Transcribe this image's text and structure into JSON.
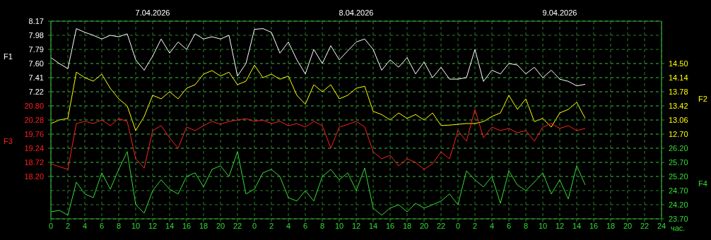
{
  "chart_data": [
    {
      "type": "line",
      "x": [
        "2026-04-07T00:00",
        "2026-04-07T01:00",
        "2026-04-07T02:00",
        "2026-04-07T03:00",
        "2026-04-07T04:00",
        "2026-04-07T05:00",
        "2026-04-07T06:00",
        "2026-04-07T07:00",
        "2026-04-07T08:00",
        "2026-04-07T09:00",
        "2026-04-07T10:00",
        "2026-04-07T11:00",
        "2026-04-07T12:00",
        "2026-04-07T13:00",
        "2026-04-07T14:00",
        "2026-04-07T15:00",
        "2026-04-07T16:00",
        "2026-04-07T17:00",
        "2026-04-07T18:00",
        "2026-04-07T19:00",
        "2026-04-07T20:00",
        "2026-04-07T21:00",
        "2026-04-07T22:00",
        "2026-04-07T23:00",
        "2026-04-08T00:00",
        "2026-04-08T01:00",
        "2026-04-08T02:00",
        "2026-04-08T03:00",
        "2026-04-08T04:00",
        "2026-04-08T05:00",
        "2026-04-08T06:00",
        "2026-04-08T07:00",
        "2026-04-08T08:00",
        "2026-04-08T09:00",
        "2026-04-08T10:00",
        "2026-04-08T11:00",
        "2026-04-08T12:00",
        "2026-04-08T13:00",
        "2026-04-08T14:00",
        "2026-04-08T15:00",
        "2026-04-08T16:00",
        "2026-04-08T17:00",
        "2026-04-08T18:00",
        "2026-04-08T19:00",
        "2026-04-08T20:00",
        "2026-04-08T21:00",
        "2026-04-08T22:00",
        "2026-04-08T23:00",
        "2026-04-09T00:00",
        "2026-04-09T01:00",
        "2026-04-09T02:00",
        "2026-04-09T03:00",
        "2026-04-09T04:00",
        "2026-04-09T05:00",
        "2026-04-09T06:00",
        "2026-04-09T07:00",
        "2026-04-09T08:00",
        "2026-04-09T09:00",
        "2026-04-09T10:00",
        "2026-04-09T11:00",
        "2026-04-09T12:00",
        "2026-04-09T13:00",
        "2026-04-09T14:00",
        "2026-04-09T15:00"
      ],
      "xlim": [
        "2026-04-07T00:00",
        "2026-04-10T00:00"
      ],
      "xticks": [
        {
          "value": "2026-04-07T00:00",
          "label": "0"
        },
        {
          "value": "2026-04-07T02:00",
          "label": "2"
        },
        {
          "value": "2026-04-07T04:00",
          "label": "4"
        },
        {
          "value": "2026-04-07T06:00",
          "label": "6"
        },
        {
          "value": "2026-04-07T08:00",
          "label": "8"
        },
        {
          "value": "2026-04-07T10:00",
          "label": "10"
        },
        {
          "value": "2026-04-07T12:00",
          "label": "12"
        },
        {
          "value": "2026-04-07T14:00",
          "label": "14"
        },
        {
          "value": "2026-04-07T16:00",
          "label": "16"
        },
        {
          "value": "2026-04-07T18:00",
          "label": "18"
        },
        {
          "value": "2026-04-07T20:00",
          "label": "20"
        },
        {
          "value": "2026-04-07T22:00",
          "label": "22"
        },
        {
          "value": "2026-04-08T00:00",
          "label": "0"
        },
        {
          "value": "2026-04-08T02:00",
          "label": "2"
        },
        {
          "value": "2026-04-08T04:00",
          "label": "4"
        },
        {
          "value": "2026-04-08T06:00",
          "label": "6"
        },
        {
          "value": "2026-04-08T08:00",
          "label": "8"
        },
        {
          "value": "2026-04-08T10:00",
          "label": "10"
        },
        {
          "value": "2026-04-08T12:00",
          "label": "12"
        },
        {
          "value": "2026-04-08T14:00",
          "label": "14"
        },
        {
          "value": "2026-04-08T16:00",
          "label": "16"
        },
        {
          "value": "2026-04-08T18:00",
          "label": "18"
        },
        {
          "value": "2026-04-08T20:00",
          "label": "20"
        },
        {
          "value": "2026-04-08T22:00",
          "label": "22"
        },
        {
          "value": "2026-04-09T00:00",
          "label": "0"
        },
        {
          "value": "2026-04-09T02:00",
          "label": "2"
        },
        {
          "value": "2026-04-09T04:00",
          "label": "4"
        },
        {
          "value": "2026-04-09T06:00",
          "label": "6"
        },
        {
          "value": "2026-04-09T08:00",
          "label": "8"
        },
        {
          "value": "2026-04-09T10:00",
          "label": "10"
        },
        {
          "value": "2026-04-09T12:00",
          "label": "12"
        },
        {
          "value": "2026-04-09T14:00",
          "label": "14"
        },
        {
          "value": "2026-04-09T16:00",
          "label": "16"
        },
        {
          "value": "2026-04-09T18:00",
          "label": "18"
        },
        {
          "value": "2026-04-09T20:00",
          "label": "20"
        },
        {
          "value": "2026-04-09T22:00",
          "label": "22"
        },
        {
          "value": "2026-04-10T00:00",
          "label": "24"
        }
      ],
      "xlabel": "час.",
      "x2lim": [
        "2026-04-07T00:00",
        "2026-04-10T00:00"
      ],
      "x2ticks": [
        {
          "value": "2026-04-07T12:00",
          "label": "7.04.2026"
        },
        {
          "value": "2026-04-08T12:00",
          "label": "8.04.2026"
        },
        {
          "value": "2026-04-09T12:00",
          "label": "9.04.2026"
        }
      ],
      "ylabel": "F1",
      "ylim": [
        5.51,
        8.17
      ],
      "yticks": [
        8.17,
        7.98,
        7.79,
        {
          "value": 7.6,
          "label": "7.60"
        },
        7.41,
        7.22
      ],
      "y2label": "F2",
      "y2lim": [
        10.54,
        15.58
      ],
      "y2ticks": [
        {
          "value": 14.5,
          "label": "14.50"
        },
        14.14,
        13.78,
        13.42,
        13.06,
        {
          "value": 12.7,
          "label": "12.70"
        }
      ],
      "grid": true,
      "series": [
        {
          "color": "#ffffff",
          "values": [
            7.68,
            7.6,
            7.53,
            8.07,
            8.02,
            7.98,
            7.93,
            7.98,
            7.96,
            8.0,
            7.65,
            7.51,
            7.7,
            7.93,
            7.74,
            7.89,
            7.79,
            8.0,
            7.93,
            7.96,
            7.93,
            7.98,
            7.43,
            7.6,
            8.06,
            8.07,
            8.02,
            7.74,
            7.89,
            7.65,
            7.46,
            7.79,
            7.6,
            7.84,
            7.65,
            7.77,
            7.89,
            7.93,
            7.79,
            7.51,
            7.65,
            7.55,
            7.68,
            7.46,
            7.62,
            7.41,
            7.55,
            7.39,
            7.39,
            7.41,
            7.79,
            7.36,
            7.51,
            7.46,
            7.6,
            7.58,
            7.46,
            7.55,
            7.41,
            7.51,
            7.39,
            7.36,
            7.3,
            7.32
          ]
        },
        {
          "color": "#ffff00",
          "axis": "y2",
          "values": [
            12.97,
            13.06,
            13.1,
            14.28,
            14.14,
            14.05,
            14.23,
            13.87,
            13.6,
            13.42,
            12.79,
            13.15,
            13.69,
            13.6,
            13.78,
            13.6,
            13.87,
            13.96,
            14.23,
            14.32,
            14.18,
            14.28,
            13.96,
            14.05,
            14.46,
            14.14,
            14.23,
            14.1,
            14.18,
            13.69,
            13.46,
            13.96,
            13.78,
            13.96,
            13.6,
            13.69,
            13.87,
            13.92,
            13.28,
            13.2,
            13.06,
            13.24,
            13.1,
            13.2,
            13.06,
            13.24,
            12.92,
            12.93,
            12.95,
            12.97,
            12.97,
            13.02,
            13.15,
            13.24,
            13.69,
            13.33,
            13.6,
            13.02,
            13.1,
            12.88,
            13.24,
            13.33,
            13.51,
            13.1
          ]
        }
      ]
    },
    {
      "type": "line",
      "x": [
        "2026-04-07T00:00",
        "2026-04-07T01:00",
        "2026-04-07T02:00",
        "2026-04-07T03:00",
        "2026-04-07T04:00",
        "2026-04-07T05:00",
        "2026-04-07T06:00",
        "2026-04-07T07:00",
        "2026-04-07T08:00",
        "2026-04-07T09:00",
        "2026-04-07T10:00",
        "2026-04-07T11:00",
        "2026-04-07T12:00",
        "2026-04-07T13:00",
        "2026-04-07T14:00",
        "2026-04-07T15:00",
        "2026-04-07T16:00",
        "2026-04-07T17:00",
        "2026-04-07T18:00",
        "2026-04-07T19:00",
        "2026-04-07T20:00",
        "2026-04-07T21:00",
        "2026-04-07T22:00",
        "2026-04-07T23:00",
        "2026-04-08T00:00",
        "2026-04-08T01:00",
        "2026-04-08T02:00",
        "2026-04-08T03:00",
        "2026-04-08T04:00",
        "2026-04-08T05:00",
        "2026-04-08T06:00",
        "2026-04-08T07:00",
        "2026-04-08T08:00",
        "2026-04-08T09:00",
        "2026-04-08T10:00",
        "2026-04-08T11:00",
        "2026-04-08T12:00",
        "2026-04-08T13:00",
        "2026-04-08T14:00",
        "2026-04-08T15:00",
        "2026-04-08T16:00",
        "2026-04-08T17:00",
        "2026-04-08T18:00",
        "2026-04-08T19:00",
        "2026-04-08T20:00",
        "2026-04-08T21:00",
        "2026-04-08T22:00",
        "2026-04-08T23:00",
        "2026-04-09T00:00",
        "2026-04-09T01:00",
        "2026-04-09T02:00",
        "2026-04-09T03:00",
        "2026-04-09T04:00",
        "2026-04-09T05:00",
        "2026-04-09T06:00",
        "2026-04-09T07:00",
        "2026-04-09T08:00",
        "2026-04-09T09:00",
        "2026-04-09T10:00",
        "2026-04-09T11:00",
        "2026-04-09T12:00",
        "2026-04-09T13:00",
        "2026-04-09T14:00",
        "2026-04-09T15:00"
      ],
      "xlim": [
        "2026-04-07T00:00",
        "2026-04-10T00:00"
      ],
      "tick_labels": "y",
      "ylabel": "F3",
      "ylim": [
        16.64,
        23.92
      ],
      "yticks": [
        {
          "value": 20.8,
          "label": "20.80"
        },
        20.28,
        19.76,
        19.24,
        18.72,
        {
          "value": 18.2,
          "label": "18.20"
        }
      ],
      "y2label": "F4",
      "y2lim": [
        23.7,
        30.7
      ],
      "y2ticks": [
        {
          "value": 26.2,
          "label": "26.20"
        },
        {
          "value": 25.7,
          "label": "25.70"
        },
        {
          "value": 25.2,
          "label": "25.20"
        },
        {
          "value": 24.7,
          "label": "24.70"
        },
        {
          "value": 24.2,
          "label": "24.20"
        },
        {
          "value": 23.7,
          "label": "23.70"
        }
      ],
      "grid": "y",
      "series": [
        {
          "color": "#ff2020",
          "values": [
            18.67,
            18.56,
            18.46,
            20.15,
            20.23,
            20.15,
            20.28,
            20.07,
            20.33,
            20.23,
            18.85,
            18.51,
            19.89,
            20.07,
            19.63,
            19.24,
            20.02,
            19.89,
            20.07,
            20.23,
            20.12,
            20.23,
            20.28,
            20.33,
            20.23,
            20.28,
            20.15,
            20.23,
            20.07,
            20.15,
            20.02,
            20.23,
            20.07,
            19.24,
            20.02,
            20.12,
            20.23,
            20.02,
            19.11,
            18.85,
            18.98,
            18.59,
            18.85,
            18.72,
            18.46,
            18.67,
            19.11,
            18.85,
            19.89,
            19.5,
            20.67,
            19.63,
            20.02,
            19.89,
            19.97,
            19.81,
            19.89,
            19.5,
            20.02,
            20.15,
            19.97,
            20.07,
            19.89,
            19.97
          ]
        },
        {
          "color": "#33dd33",
          "axis": "y2",
          "values": [
            23.95,
            24.0,
            23.83,
            25.0,
            24.58,
            24.45,
            25.33,
            24.75,
            25.45,
            26.08,
            24.2,
            23.9,
            24.7,
            25.08,
            24.75,
            24.58,
            25.2,
            25.33,
            24.83,
            25.45,
            25.58,
            25.2,
            26.08,
            24.58,
            24.75,
            25.33,
            25.45,
            25.2,
            24.45,
            24.33,
            24.7,
            24.33,
            25.2,
            25.45,
            25.08,
            25.33,
            24.7,
            25.5,
            24.08,
            23.83,
            24.08,
            24.2,
            23.95,
            24.25,
            24.08,
            24.2,
            24.33,
            24.58,
            24.2,
            25.4,
            25.08,
            24.83,
            25.2,
            24.25,
            25.4,
            24.9,
            24.7,
            25.0,
            25.33,
            24.58,
            25.08,
            24.4,
            25.58,
            24.9
          ]
        }
      ]
    }
  ]
}
